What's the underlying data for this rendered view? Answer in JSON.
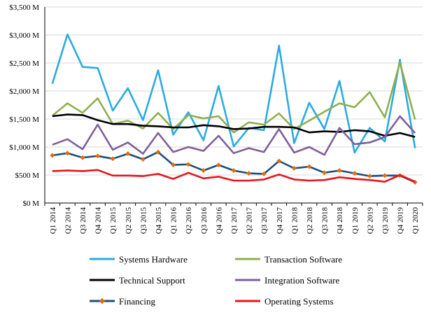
{
  "chart_data": {
    "type": "line",
    "title": "",
    "xlabel": "",
    "ylabel": "",
    "x": [
      "Q1 2014",
      "Q2 2014",
      "Q3 2014",
      "Q4 2014",
      "Q1 2015",
      "Q2 2015",
      "Q3 2015",
      "Q4 2015",
      "Q1 2016",
      "Q2 2016",
      "Q3 2016",
      "Q4 2016",
      "Q1 2017",
      "Q2 2017",
      "Q3 2017",
      "Q4 2017",
      "Q1 2018",
      "Q2 2018",
      "Q3 2018",
      "Q4 2018",
      "Q1 2019",
      "Q2 2019",
      "Q3 2019",
      "Q4 2019",
      "Q1 2020"
    ],
    "ylim": [
      0,
      3500
    ],
    "yticks": [
      0,
      500,
      1000,
      1500,
      2000,
      2500,
      3000,
      3500
    ],
    "ytick_labels": [
      "$0 M",
      "$500 M",
      "$1,000 M",
      "$1,500 M",
      "$2,000 M",
      "$2,500 M",
      "$3,000 M",
      "$3,500 M"
    ],
    "grid": true,
    "legend_position": "bottom",
    "series": [
      {
        "name": "Systems Hardware",
        "color": "#29ABE2",
        "marker": "none",
        "values": [
          2130,
          3010,
          2430,
          2410,
          1650,
          2050,
          1480,
          2370,
          1220,
          1620,
          1120,
          2090,
          1010,
          1340,
          1300,
          2810,
          1070,
          1790,
          1320,
          2180,
          900,
          1340,
          1100,
          2560,
          980
        ]
      },
      {
        "name": "Transaction Software",
        "color": "#8FAF4F",
        "marker": "none",
        "values": [
          1560,
          1780,
          1610,
          1870,
          1410,
          1470,
          1330,
          1610,
          1320,
          1570,
          1510,
          1550,
          1260,
          1440,
          1400,
          1600,
          1320,
          1470,
          1630,
          1780,
          1710,
          1980,
          1530,
          2510,
          1490
        ]
      },
      {
        "name": "Technical Support",
        "color": "#000000",
        "marker": "none",
        "values": [
          1550,
          1580,
          1570,
          1480,
          1410,
          1410,
          1380,
          1370,
          1350,
          1350,
          1390,
          1370,
          1320,
          1330,
          1360,
          1360,
          1350,
          1260,
          1280,
          1270,
          1300,
          1280,
          1200,
          1250,
          1180
        ]
      },
      {
        "name": "Integration Software",
        "color": "#7E5F9A",
        "marker": "none",
        "values": [
          1040,
          1140,
          960,
          1400,
          950,
          1080,
          880,
          1250,
          910,
          1000,
          930,
          1200,
          890,
          980,
          910,
          1320,
          900,
          1000,
          860,
          1340,
          1050,
          1080,
          1180,
          1550,
          1250
        ]
      },
      {
        "name": "Financing",
        "color": "#1F4E79",
        "marker": "diamond",
        "values": [
          850,
          890,
          810,
          840,
          790,
          880,
          780,
          910,
          680,
          690,
          580,
          680,
          580,
          530,
          520,
          750,
          620,
          650,
          540,
          580,
          530,
          480,
          490,
          490,
          370
        ]
      },
      {
        "name": "Operating Systems",
        "color": "#E8141B",
        "marker": "none",
        "values": [
          570,
          580,
          570,
          590,
          490,
          490,
          480,
          520,
          430,
          540,
          440,
          470,
          400,
          400,
          420,
          510,
          420,
          400,
          410,
          460,
          430,
          410,
          380,
          500,
          380
        ]
      }
    ]
  }
}
